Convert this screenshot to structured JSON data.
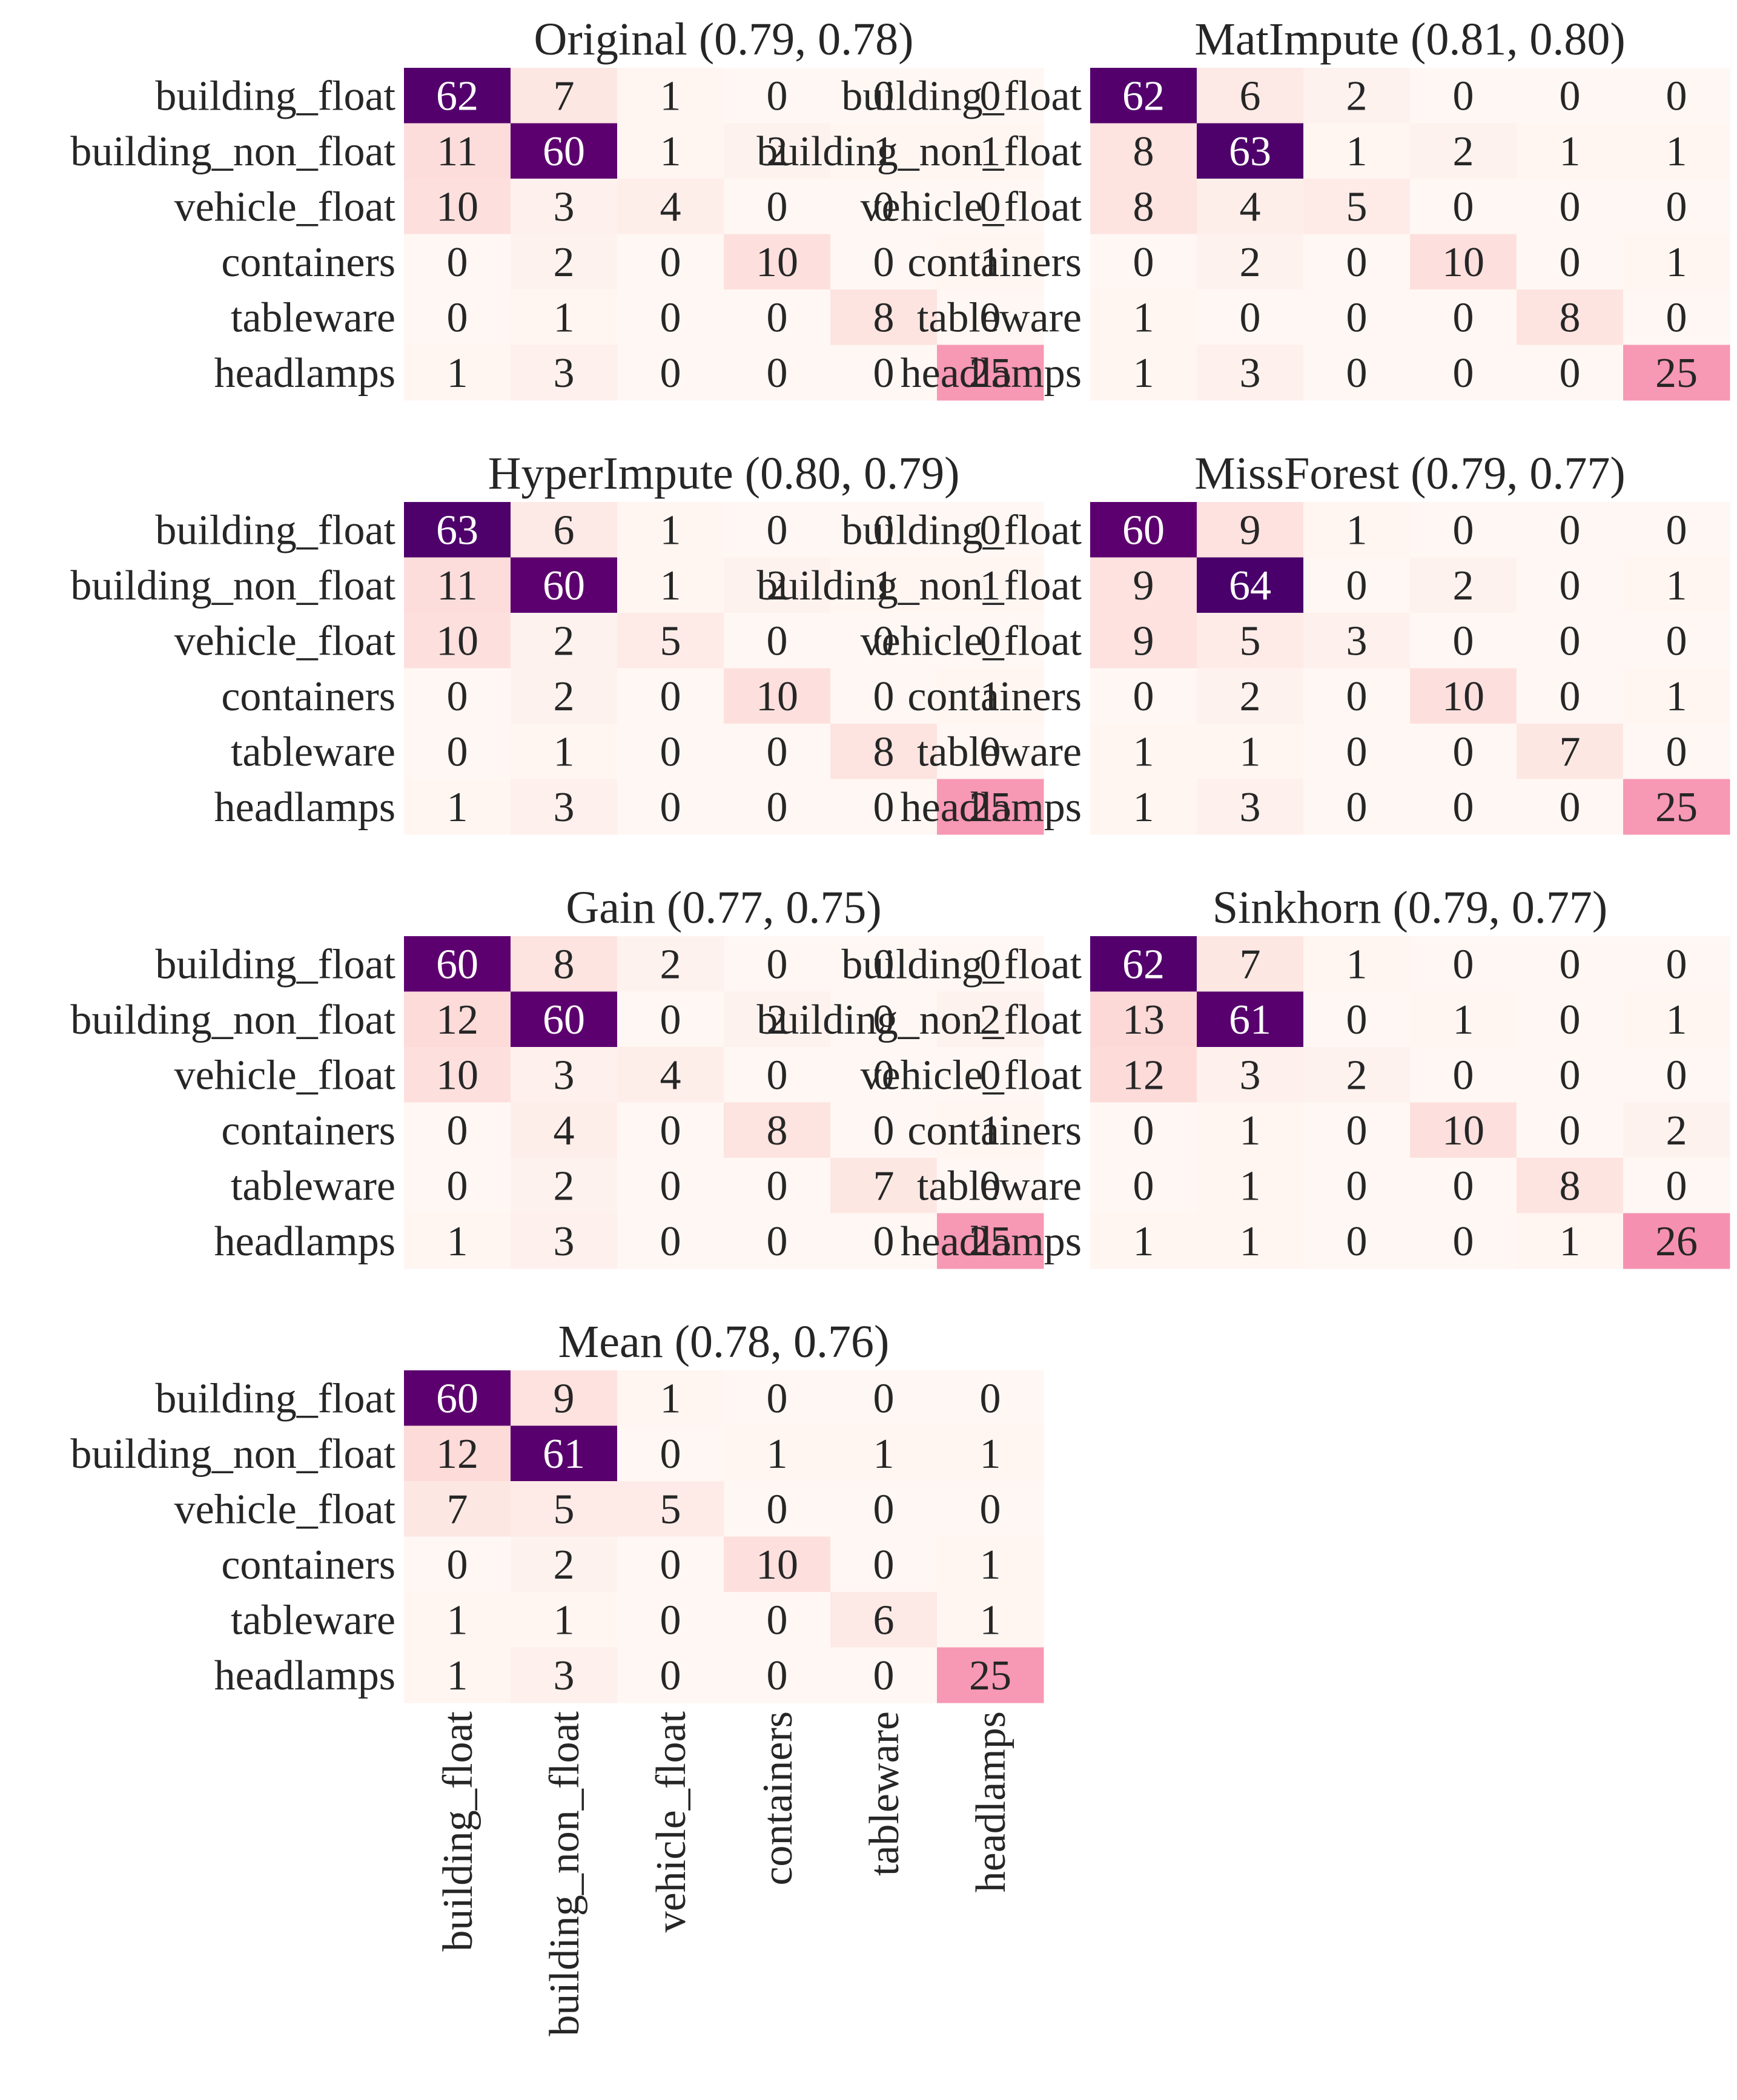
{
  "chart_data": [
    {
      "type": "heatmap",
      "title": "Original (0.79, 0.78)",
      "rows": [
        "building_float",
        "building_non_float",
        "vehicle_float",
        "containers",
        "tableware",
        "headlamps"
      ],
      "columns": [
        "building_float",
        "building_non_float",
        "vehicle_float",
        "containers",
        "tableware",
        "headlamps"
      ],
      "values": [
        [
          62,
          7,
          1,
          0,
          0,
          0
        ],
        [
          11,
          60,
          1,
          2,
          1,
          1
        ],
        [
          10,
          3,
          4,
          0,
          0,
          0
        ],
        [
          0,
          2,
          0,
          10,
          0,
          1
        ],
        [
          0,
          1,
          0,
          0,
          8,
          0
        ],
        [
          1,
          3,
          0,
          0,
          0,
          25
        ]
      ]
    },
    {
      "type": "heatmap",
      "title": "MatImpute (0.81, 0.80)",
      "rows": [
        "building_float",
        "building_non_float",
        "vehicle_float",
        "containers",
        "tableware",
        "headlamps"
      ],
      "columns": [
        "building_float",
        "building_non_float",
        "vehicle_float",
        "containers",
        "tableware",
        "headlamps"
      ],
      "values": [
        [
          62,
          6,
          2,
          0,
          0,
          0
        ],
        [
          8,
          63,
          1,
          2,
          1,
          1
        ],
        [
          8,
          4,
          5,
          0,
          0,
          0
        ],
        [
          0,
          2,
          0,
          10,
          0,
          1
        ],
        [
          1,
          0,
          0,
          0,
          8,
          0
        ],
        [
          1,
          3,
          0,
          0,
          0,
          25
        ]
      ]
    },
    {
      "type": "heatmap",
      "title": "HyperImpute (0.80, 0.79)",
      "rows": [
        "building_float",
        "building_non_float",
        "vehicle_float",
        "containers",
        "tableware",
        "headlamps"
      ],
      "columns": [
        "building_float",
        "building_non_float",
        "vehicle_float",
        "containers",
        "tableware",
        "headlamps"
      ],
      "values": [
        [
          63,
          6,
          1,
          0,
          0,
          0
        ],
        [
          11,
          60,
          1,
          2,
          1,
          1
        ],
        [
          10,
          2,
          5,
          0,
          0,
          0
        ],
        [
          0,
          2,
          0,
          10,
          0,
          1
        ],
        [
          0,
          1,
          0,
          0,
          8,
          0
        ],
        [
          1,
          3,
          0,
          0,
          0,
          25
        ]
      ]
    },
    {
      "type": "heatmap",
      "title": "MissForest (0.79, 0.77)",
      "rows": [
        "building_float",
        "building_non_float",
        "vehicle_float",
        "containers",
        "tableware",
        "headlamps"
      ],
      "columns": [
        "building_float",
        "building_non_float",
        "vehicle_float",
        "containers",
        "tableware",
        "headlamps"
      ],
      "values": [
        [
          60,
          9,
          1,
          0,
          0,
          0
        ],
        [
          9,
          64,
          0,
          2,
          0,
          1
        ],
        [
          9,
          5,
          3,
          0,
          0,
          0
        ],
        [
          0,
          2,
          0,
          10,
          0,
          1
        ],
        [
          1,
          1,
          0,
          0,
          7,
          0
        ],
        [
          1,
          3,
          0,
          0,
          0,
          25
        ]
      ]
    },
    {
      "type": "heatmap",
      "title": "Gain (0.77, 0.75)",
      "rows": [
        "building_float",
        "building_non_float",
        "vehicle_float",
        "containers",
        "tableware",
        "headlamps"
      ],
      "columns": [
        "building_float",
        "building_non_float",
        "vehicle_float",
        "containers",
        "tableware",
        "headlamps"
      ],
      "values": [
        [
          60,
          8,
          2,
          0,
          0,
          0
        ],
        [
          12,
          60,
          0,
          2,
          0,
          2
        ],
        [
          10,
          3,
          4,
          0,
          0,
          0
        ],
        [
          0,
          4,
          0,
          8,
          0,
          1
        ],
        [
          0,
          2,
          0,
          0,
          7,
          0
        ],
        [
          1,
          3,
          0,
          0,
          0,
          25
        ]
      ]
    },
    {
      "type": "heatmap",
      "title": "Sinkhorn (0.79, 0.77)",
      "rows": [
        "building_float",
        "building_non_float",
        "vehicle_float",
        "containers",
        "tableware",
        "headlamps"
      ],
      "columns": [
        "building_float",
        "building_non_float",
        "vehicle_float",
        "containers",
        "tableware",
        "headlamps"
      ],
      "values": [
        [
          62,
          7,
          1,
          0,
          0,
          0
        ],
        [
          13,
          61,
          0,
          1,
          0,
          1
        ],
        [
          12,
          3,
          2,
          0,
          0,
          0
        ],
        [
          0,
          1,
          0,
          10,
          0,
          2
        ],
        [
          0,
          1,
          0,
          0,
          8,
          0
        ],
        [
          1,
          1,
          0,
          0,
          1,
          26
        ]
      ]
    },
    {
      "type": "heatmap",
      "title": "Mean (0.78, 0.76)",
      "rows": [
        "building_float",
        "building_non_float",
        "vehicle_float",
        "containers",
        "tableware",
        "headlamps"
      ],
      "columns": [
        "building_float",
        "building_non_float",
        "vehicle_float",
        "containers",
        "tableware",
        "headlamps"
      ],
      "values": [
        [
          60,
          9,
          1,
          0,
          0,
          0
        ],
        [
          12,
          61,
          0,
          1,
          1,
          1
        ],
        [
          7,
          5,
          5,
          0,
          0,
          0
        ],
        [
          0,
          2,
          0,
          10,
          0,
          1
        ],
        [
          1,
          1,
          0,
          0,
          6,
          1
        ],
        [
          1,
          3,
          0,
          0,
          0,
          25
        ]
      ]
    }
  ]
}
